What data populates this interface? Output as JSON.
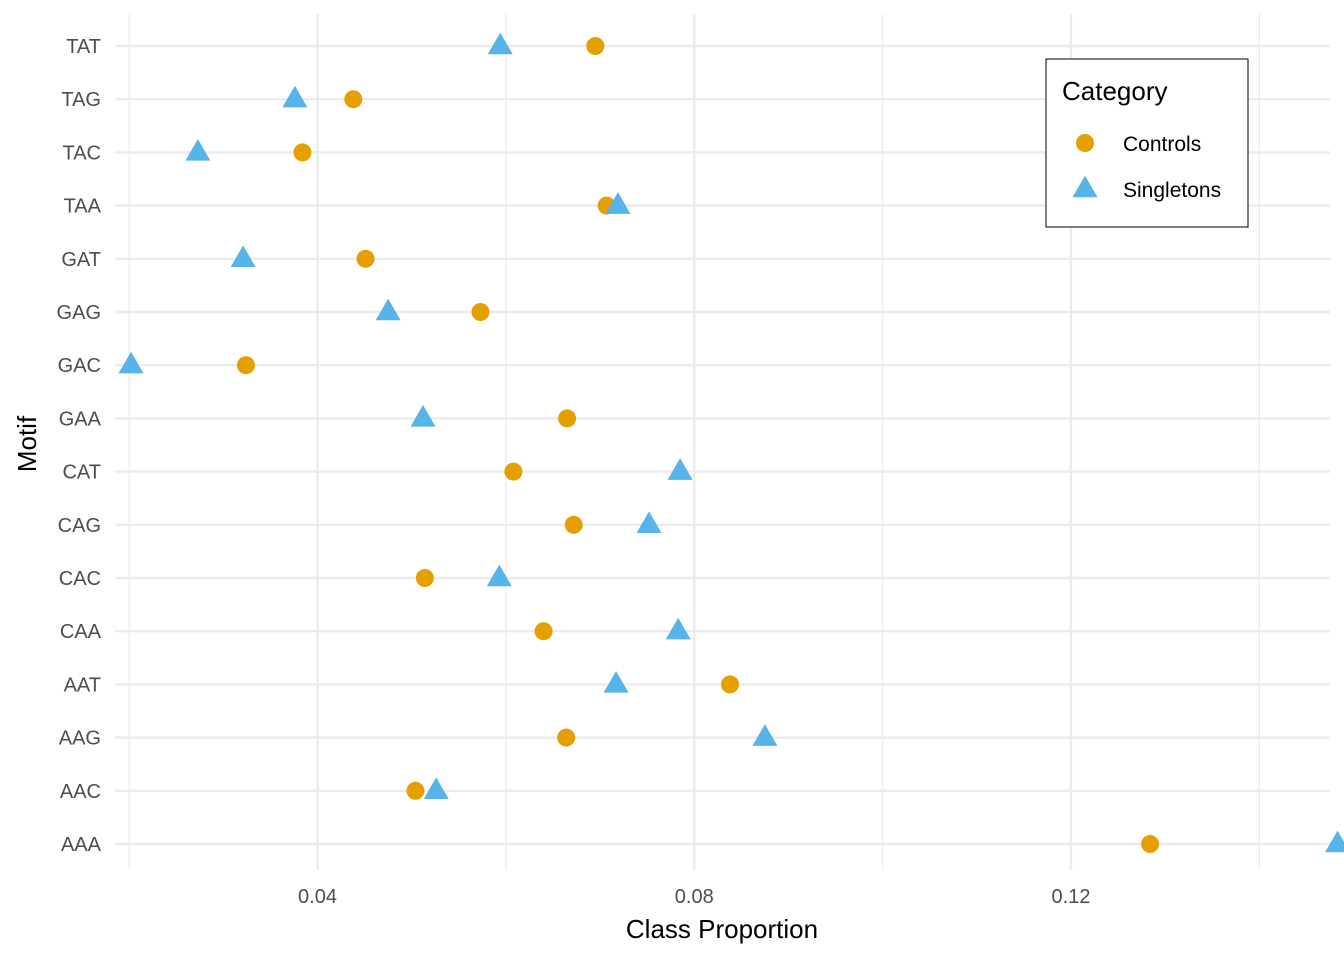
{
  "chart_data": {
    "type": "scatter",
    "title": "",
    "xlabel": "Class Proportion",
    "ylabel": "Motif",
    "xlim": [
      0.0185,
      0.1475
    ],
    "x_ticks": [
      0.04,
      0.08,
      0.12
    ],
    "x_tick_labels": [
      "0.04",
      "0.08",
      "0.12"
    ],
    "categories": [
      "TAT",
      "TAG",
      "TAC",
      "TAA",
      "GAT",
      "GAG",
      "GAC",
      "GAA",
      "CAT",
      "CAG",
      "CAC",
      "CAA",
      "AAT",
      "AAG",
      "AAC",
      "AAA"
    ],
    "grid": true,
    "legend_title": "Category",
    "legend_position": "top-right",
    "series": [
      {
        "name": "Controls",
        "shape": "circle",
        "color": "#E69F00",
        "values": [
          0.0695,
          0.0438,
          0.0384,
          0.0707,
          0.0451,
          0.0573,
          0.0324,
          0.0665,
          0.0608,
          0.0672,
          0.0514,
          0.064,
          0.0838,
          0.0664,
          0.0504,
          0.1284
        ]
      },
      {
        "name": "Singletons",
        "shape": "triangle",
        "color": "#56B4E9",
        "values": [
          0.0594,
          0.0376,
          0.0273,
          0.0719,
          0.0321,
          0.0475,
          0.0202,
          0.0512,
          0.0785,
          0.0752,
          0.0593,
          0.0783,
          0.0717,
          0.0875,
          0.0526,
          0.1483
        ]
      }
    ]
  }
}
